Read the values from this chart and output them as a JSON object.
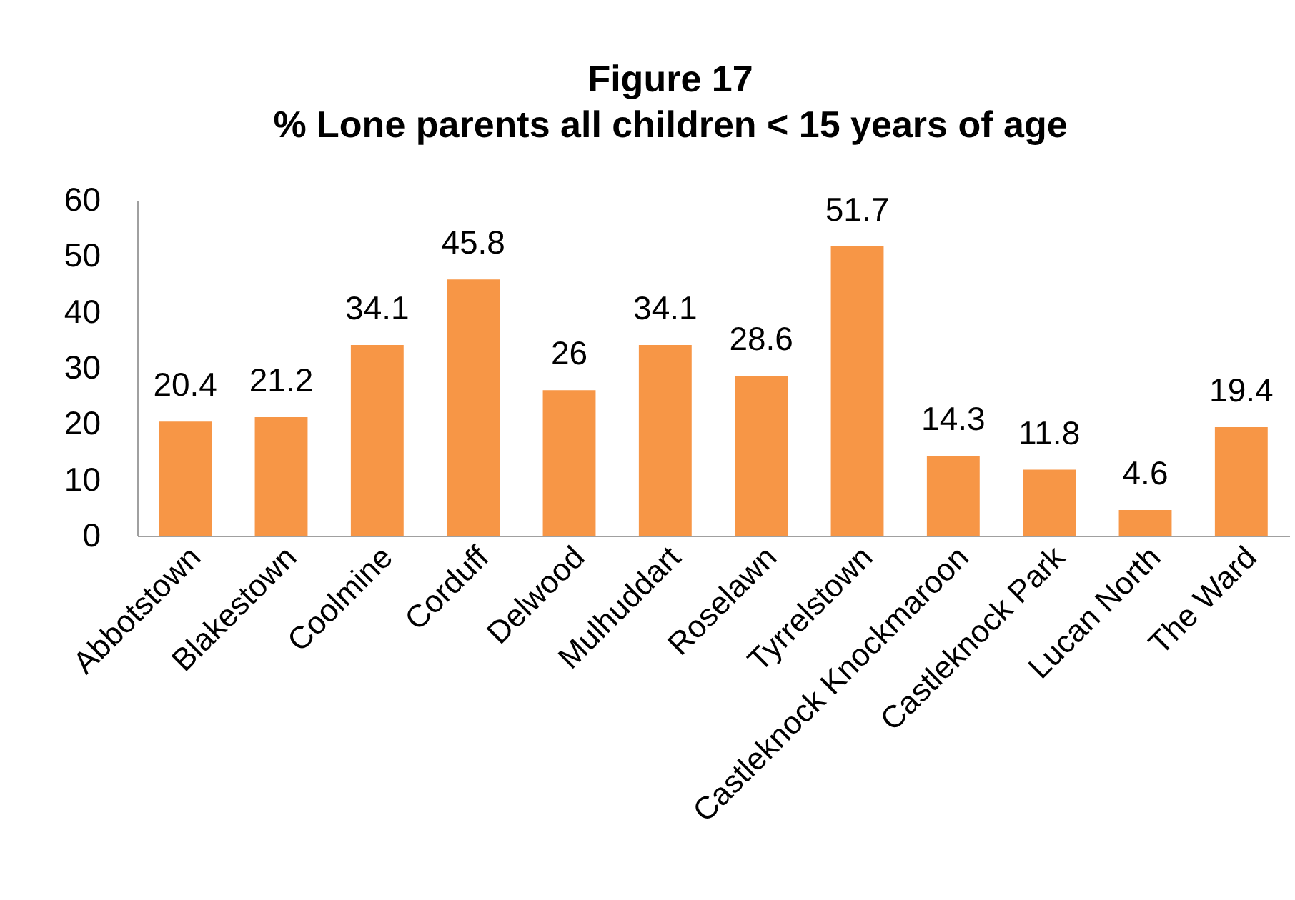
{
  "chart_data": {
    "type": "bar",
    "title": "Figure 17",
    "subtitle": "% Lone parents all children < 15 years of age",
    "categories": [
      "Abbotstown",
      "Blakestown",
      "Coolmine",
      "Corduff",
      "Delwood",
      "Mulhuddart",
      "Roselawn",
      "Tyrrelstown",
      "Castleknock Knockmaroon",
      "Castleknock Park",
      "Lucan North",
      "The Ward"
    ],
    "values": [
      20.4,
      21.2,
      34.1,
      45.8,
      26,
      34.1,
      28.6,
      51.7,
      14.3,
      11.8,
      4.6,
      19.4
    ],
    "color": "#f79646",
    "ylim": [
      0,
      60
    ],
    "yticks": [
      0,
      10,
      20,
      30,
      40,
      50,
      60
    ],
    "grid": false,
    "data_labels": true
  }
}
